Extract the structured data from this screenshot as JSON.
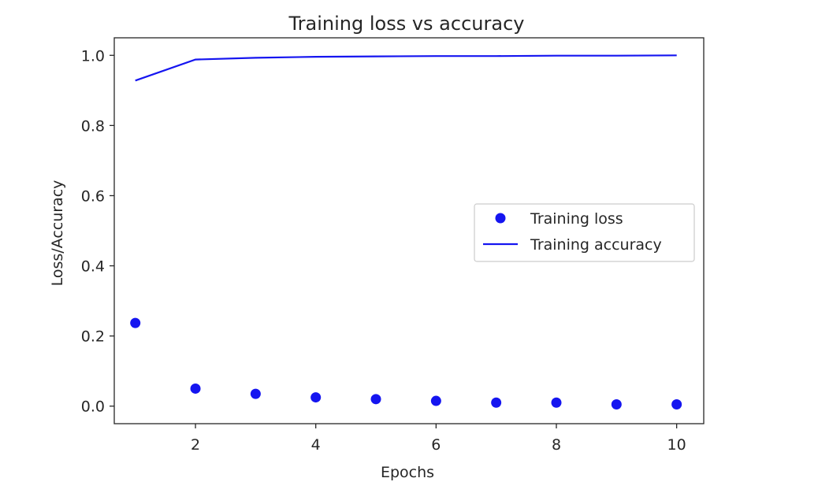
{
  "chart_data": {
    "type": "scatter+line",
    "title": "Training loss vs accuracy",
    "xlabel": "Epochs",
    "ylabel": "Loss/Accuracy",
    "xlim": [
      0.65,
      10.45
    ],
    "ylim": [
      -0.05,
      1.05
    ],
    "xticks": [
      2,
      4,
      6,
      8,
      10
    ],
    "xtick_labels": [
      "2",
      "4",
      "6",
      "8",
      "10"
    ],
    "yticks": [
      0.0,
      0.2,
      0.4,
      0.6,
      0.8,
      1.0
    ],
    "ytick_labels": [
      "0.0",
      "0.2",
      "0.4",
      "0.6",
      "0.8",
      "1.0"
    ],
    "grid": false,
    "legend_position": "center-right",
    "x": [
      1,
      2,
      3,
      4,
      5,
      6,
      7,
      8,
      9,
      10
    ],
    "series": [
      {
        "name": "Training loss",
        "kind": "scatter",
        "color": "#1515f0",
        "values": [
          0.237,
          0.05,
          0.035,
          0.025,
          0.02,
          0.015,
          0.01,
          0.01,
          0.005,
          0.005
        ]
      },
      {
        "name": "Training accuracy",
        "kind": "line",
        "color": "#1515f0",
        "values": [
          0.928,
          0.988,
          0.993,
          0.996,
          0.997,
          0.998,
          0.998,
          0.999,
          0.999,
          1.0
        ]
      }
    ]
  }
}
